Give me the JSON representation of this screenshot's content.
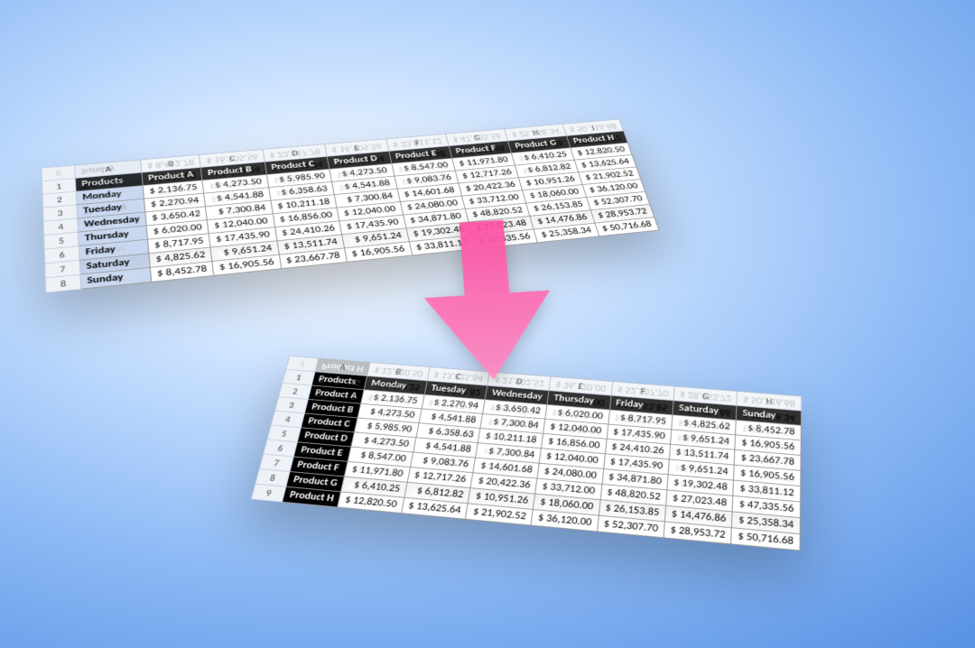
{
  "background": {
    "gradient_center": "#ffffff",
    "gradient_mid": "#8bb9f5",
    "gradient_edge": "#3f78d0"
  },
  "arrow": {
    "fill_top": "#ff4fa3",
    "fill_bottom": "#ff72b3",
    "opacity": 0.92
  },
  "spreadsheet_colors": {
    "header_row_bg": "#000000",
    "header_row_fg": "#ffffff",
    "row_label_bg_top": "#c9d8f0",
    "row_label_bg_bottom": "#000000",
    "row_label_fg_bottom": "#ffffff",
    "grid_header_bg": "#eef2f7",
    "cell_bg": "#ffffff",
    "border": "#9a9a9a",
    "font_family": "Calibri",
    "font_size_pt": 11
  },
  "col_letters": [
    "A",
    "B",
    "C",
    "D",
    "E",
    "F",
    "G",
    "H",
    "I"
  ],
  "top": {
    "type": "table",
    "a1": "Products",
    "columns": [
      "Product A",
      "Product B",
      "Product C",
      "Product D",
      "Product E",
      "Product F",
      "Product G",
      "Product H"
    ],
    "row_headers": [
      "Monday",
      "Tuesday",
      "Wednesday",
      "Thursday",
      "Friday",
      "Saturday",
      "Sunday"
    ],
    "rows": [
      [
        "$ 2,136.75",
        "$ 4,273.50",
        "$ 5,985.90",
        "$ 4,273.50",
        "$ 8,547.00",
        "$ 11,971.80",
        "$ 6,410.25",
        "$ 12,820.50"
      ],
      [
        "$ 2,270.94",
        "$ 4,541.88",
        "$ 6,358.63",
        "$ 4,541.88",
        "$ 9,083.76",
        "$ 12,717.26",
        "$ 6,812.82",
        "$ 13,625.64"
      ],
      [
        "$ 3,650.42",
        "$ 7,300.84",
        "$ 10,211.18",
        "$ 7,300.84",
        "$ 14,601.68",
        "$ 20,422.36",
        "$ 10,951.26",
        "$ 21,902.52"
      ],
      [
        "$ 6,020.00",
        "$ 12,040.00",
        "$ 16,856.00",
        "$ 12,040.00",
        "$ 24,080.00",
        "$ 33,712.00",
        "$ 18,060.00",
        "$ 36,120.00"
      ],
      [
        "$ 8,717.95",
        "$ 17,435.90",
        "$ 24,410.26",
        "$ 17,435.90",
        "$ 34,871.80",
        "$ 48,820.52",
        "$ 26,153.85",
        "$ 52,307.70"
      ],
      [
        "$ 4,825.62",
        "$ 9,651.24",
        "$ 13,511.74",
        "$ 9,651.24",
        "$ 19,302.48",
        "$ 27,023.48",
        "$ 14,476.86",
        "$ 28,953.72"
      ],
      [
        "$ 8,452.78",
        "$ 16,905.56",
        "$ 23,667.78",
        "$ 16,905.56",
        "$ 33,811.12",
        "$ 47,335.56",
        "$ 25,358.34",
        "$ 50,716.68"
      ]
    ]
  },
  "bottom": {
    "type": "table",
    "a1": "Products",
    "columns": [
      "Monday",
      "Tuesday",
      "Wednesday",
      "Thursday",
      "Friday",
      "Saturday",
      "Sunday"
    ],
    "row_headers": [
      "Product A",
      "Product B",
      "Product C",
      "Product D",
      "Product E",
      "Product F",
      "Product G",
      "Product H"
    ],
    "rows": [
      [
        "$ 2,136.75",
        "$ 2,270.94",
        "$ 3,650.42",
        "$ 6,020.00",
        "$ 8,717.95",
        "$ 4,825.62",
        "$ 8,452.78"
      ],
      [
        "$ 4,273.50",
        "$ 4,541.88",
        "$ 7,300.84",
        "$ 12,040.00",
        "$ 17,435.90",
        "$ 9,651.24",
        "$ 16,905.56"
      ],
      [
        "$ 5,985.90",
        "$ 6,358.63",
        "$ 10,211.18",
        "$ 16,856.00",
        "$ 24,410.26",
        "$ 13,511.74",
        "$ 23,667.78"
      ],
      [
        "$ 4,273.50",
        "$ 4,541.88",
        "$ 7,300.84",
        "$ 12,040.00",
        "$ 17,435.90",
        "$ 9,651.24",
        "$ 16,905.56"
      ],
      [
        "$ 8,547.00",
        "$ 9,083.76",
        "$ 14,601.68",
        "$ 24,080.00",
        "$ 34,871.80",
        "$ 19,302.48",
        "$ 33,811.12"
      ],
      [
        "$ 11,971.80",
        "$ 12,717.26",
        "$ 20,422.36",
        "$ 33,712.00",
        "$ 48,820.52",
        "$ 27,023.48",
        "$ 47,335.56"
      ],
      [
        "$ 6,410.25",
        "$ 6,812.82",
        "$ 10,951.26",
        "$ 18,060.00",
        "$ 26,153.85",
        "$ 14,476.86",
        "$ 25,358.34"
      ],
      [
        "$ 12,820.50",
        "$ 13,625.64",
        "$ 21,902.52",
        "$ 36,120.00",
        "$ 52,307.70",
        "$ 28,953.72",
        "$ 50,716.68"
      ]
    ]
  }
}
